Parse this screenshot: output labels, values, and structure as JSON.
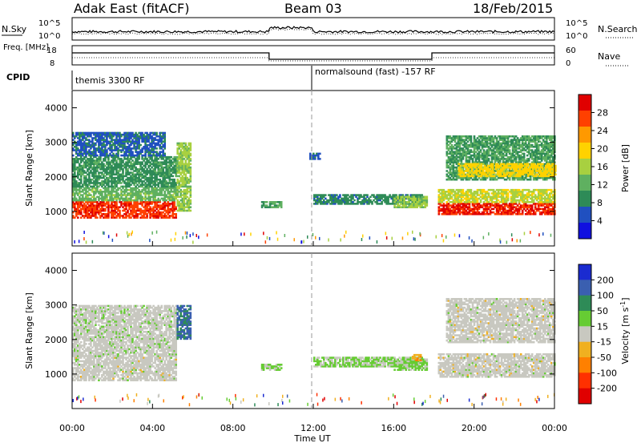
{
  "header": {
    "station": "Adak East (fitACF)",
    "beam": "Beam 03",
    "date": "18/Feb/2015"
  },
  "colors": {
    "power_scale": [
      "#1010e0",
      "#2050c0",
      "#2e8b57",
      "#5fb060",
      "#a8d040",
      "#ffd200",
      "#ff9900",
      "#ff4000",
      "#e00000"
    ],
    "velocity_scale": [
      "#1a2bd0",
      "#3a5fb0",
      "#2e8b57",
      "#66cc33",
      "#c8c8c0",
      "#f0b020",
      "#ff8000",
      "#ff3000",
      "#e00000"
    ]
  },
  "chart_data": [
    {
      "type": "line",
      "name": "N.Sky / N.Search",
      "left_label": "N.Sky",
      "right_label": "N.Search",
      "left_ticks": [
        "10^5",
        "10^0"
      ],
      "right_ticks": [
        "10^5",
        "10^0"
      ],
      "x_range": [
        0,
        24
      ],
      "note": "noise levels near 10^0, slight increase 09:50–12:00"
    },
    {
      "type": "line",
      "name": "Freq / Nave",
      "left_label": "Freq. [MHz]",
      "right_label": "Nave",
      "left_ticks": [
        "18",
        "8"
      ],
      "right_ticks": [
        "60",
        "0"
      ],
      "freq_steps": [
        {
          "x": [
            0,
            9.8
          ],
          "level": "high"
        },
        {
          "x": [
            9.8,
            17.9
          ],
          "level": "low"
        },
        {
          "x": [
            17.9,
            24
          ],
          "level": "high"
        }
      ]
    },
    {
      "type": "table",
      "name": "CPID",
      "label": "CPID",
      "segments": [
        {
          "start": 0.0,
          "end": 11.9,
          "text": "themis 3300 RF"
        },
        {
          "start": 11.9,
          "end": 24.0,
          "text": "normalsound (fast) -157 RF"
        }
      ]
    },
    {
      "type": "heatmap",
      "name": "Power",
      "ylabel": "Slant Range [km]",
      "yticks": [
        "1000",
        "2000",
        "3000",
        "4000"
      ],
      "ylim": [
        0,
        4500
      ],
      "colorbar_label": "Power [dB]",
      "colorbar_ticks": [
        "4",
        "8",
        "12",
        "16",
        "20",
        "24",
        "28"
      ],
      "clim": [
        0,
        30
      ],
      "regions": [
        {
          "t": [
            0.0,
            5.2
          ],
          "r": [
            800,
            1300
          ],
          "v": 26
        },
        {
          "t": [
            0.0,
            5.2
          ],
          "r": [
            1300,
            1700
          ],
          "v": 12
        },
        {
          "t": [
            0.0,
            5.2
          ],
          "r": [
            1700,
            2600
          ],
          "v": 9
        },
        {
          "t": [
            0.0,
            4.6
          ],
          "r": [
            2600,
            3300
          ],
          "v": 6
        },
        {
          "t": [
            5.2,
            5.9
          ],
          "r": [
            1000,
            3000
          ],
          "v": 14
        },
        {
          "t": [
            9.4,
            10.4
          ],
          "r": [
            1100,
            1300
          ],
          "v": 10
        },
        {
          "t": [
            11.8,
            12.3
          ],
          "r": [
            2500,
            2700
          ],
          "v": 6
        },
        {
          "t": [
            12.0,
            17.4
          ],
          "r": [
            1200,
            1500
          ],
          "v": 8
        },
        {
          "t": [
            16.0,
            17.6
          ],
          "r": [
            1100,
            1450
          ],
          "v": 14
        },
        {
          "t": [
            18.2,
            24.0
          ],
          "r": [
            900,
            1250
          ],
          "v": 27
        },
        {
          "t": [
            18.2,
            24.0
          ],
          "r": [
            1250,
            1650
          ],
          "v": 16
        },
        {
          "t": [
            18.6,
            24.0
          ],
          "r": [
            1900,
            3200
          ],
          "v": 10
        },
        {
          "t": [
            19.2,
            24.0
          ],
          "r": [
            2000,
            2400
          ],
          "v": 18
        }
      ]
    },
    {
      "type": "heatmap",
      "name": "Velocity",
      "ylabel": "Slant Range [km]",
      "yticks": [
        "1000",
        "2000",
        "3000",
        "4000"
      ],
      "ylim": [
        0,
        4500
      ],
      "colorbar_label": "Velocity [m s^-1]",
      "colorbar_ticks": [
        "200",
        "100",
        "50",
        "15",
        "-15",
        "-50",
        "-100",
        "-200"
      ],
      "clim": [
        -250,
        250
      ],
      "regions": [
        {
          "t": [
            0.0,
            5.2
          ],
          "r": [
            800,
            1500
          ],
          "v": 0
        },
        {
          "t": [
            0.0,
            5.2
          ],
          "r": [
            1500,
            3000
          ],
          "v": 5
        },
        {
          "t": [
            5.2,
            5.9
          ],
          "r": [
            2000,
            3000
          ],
          "v": 150
        },
        {
          "t": [
            9.4,
            10.4
          ],
          "r": [
            1100,
            1300
          ],
          "v": 40
        },
        {
          "t": [
            12.0,
            17.4
          ],
          "r": [
            1200,
            1500
          ],
          "v": 35
        },
        {
          "t": [
            16.0,
            17.6
          ],
          "r": [
            1100,
            1450
          ],
          "v": 35
        },
        {
          "t": [
            16.9,
            17.3
          ],
          "r": [
            1380,
            1550
          ],
          "v": -70
        },
        {
          "t": [
            18.2,
            24.0
          ],
          "r": [
            900,
            1600
          ],
          "v": 0
        },
        {
          "t": [
            18.6,
            24.0
          ],
          "r": [
            1900,
            3200
          ],
          "v": 0
        }
      ]
    }
  ],
  "x_axis": {
    "label": "Time UT",
    "ticks": [
      "00:00",
      "04:00",
      "08:00",
      "12:00",
      "16:00",
      "20:00",
      "00:00"
    ],
    "range": [
      0,
      24
    ]
  }
}
